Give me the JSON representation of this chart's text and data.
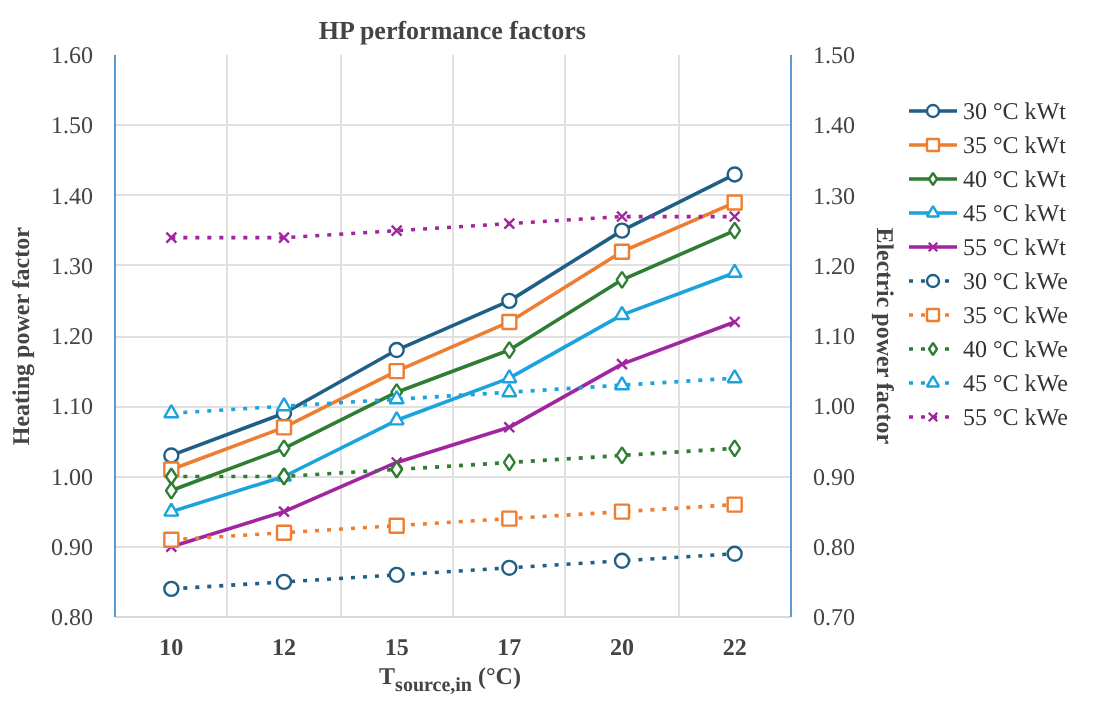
{
  "chart_data": {
    "type": "line",
    "title": "HP performance factors",
    "xlabel": "T$_{source,in}$ (°C)",
    "ylabel": "Heating power factor",
    "y2label": "Electric power factor",
    "categories": [
      "10",
      "12",
      "15",
      "17",
      "20",
      "22"
    ],
    "ylim": [
      0.8,
      1.6
    ],
    "yticks": [
      {
        "value": 0.8,
        "label": "0.80"
      },
      {
        "value": 0.9,
        "label": "0.90"
      },
      {
        "value": 1.0,
        "label": "1.00"
      },
      {
        "value": 1.1,
        "label": "1.10"
      },
      {
        "value": 1.2,
        "label": "1.20"
      },
      {
        "value": 1.3,
        "label": "1.30"
      },
      {
        "value": 1.4,
        "label": "1.40"
      },
      {
        "value": 1.5,
        "label": "1.50"
      },
      {
        "value": 1.6,
        "label": "1.60"
      }
    ],
    "y2lim": [
      0.7,
      1.5
    ],
    "y2ticks": [
      {
        "value": 0.7,
        "label": "0.70"
      },
      {
        "value": 0.8,
        "label": "0.80"
      },
      {
        "value": 0.9,
        "label": "0.90"
      },
      {
        "value": 1.0,
        "label": "1.00"
      },
      {
        "value": 1.1,
        "label": "1.10"
      },
      {
        "value": 1.2,
        "label": "1.20"
      },
      {
        "value": 1.3,
        "label": "1.30"
      },
      {
        "value": 1.4,
        "label": "1.40"
      },
      {
        "value": 1.5,
        "label": "1.50"
      }
    ],
    "grid": true,
    "legend": "right",
    "series": [
      {
        "name": "30 °C kWt",
        "color": "#1f5f86",
        "marker": "circle",
        "line_style": "solid",
        "values": [
          1.03,
          1.09,
          1.18,
          1.25,
          1.35,
          1.43
        ]
      },
      {
        "name": "35 °C kWt",
        "color": "#ed7d31",
        "marker": "square",
        "line_style": "solid",
        "values": [
          1.01,
          1.07,
          1.15,
          1.22,
          1.32,
          1.39
        ]
      },
      {
        "name": "40 °C kWt",
        "color": "#2e7d32",
        "marker": "diamond",
        "line_style": "solid",
        "values": [
          0.98,
          1.04,
          1.12,
          1.18,
          1.28,
          1.35
        ]
      },
      {
        "name": "45 °C kWt",
        "color": "#1aa3dc",
        "marker": "triangle",
        "line_style": "solid",
        "values": [
          0.95,
          1.0,
          1.08,
          1.14,
          1.23,
          1.29
        ]
      },
      {
        "name": "55 °C kWt",
        "color": "#a0259e",
        "marker": "cross",
        "line_style": "solid",
        "values": [
          0.9,
          0.95,
          1.02,
          1.07,
          1.16,
          1.22
        ]
      },
      {
        "name": "30 °C kWe",
        "color": "#1f5f86",
        "marker": "circle",
        "line_style": "dotted",
        "axis": "y2",
        "values": [
          0.74,
          0.75,
          0.76,
          0.77,
          0.78,
          0.79
        ]
      },
      {
        "name": "35 °C kWe",
        "color": "#ed7d31",
        "marker": "square",
        "line_style": "dotted",
        "axis": "y2",
        "values": [
          0.81,
          0.82,
          0.83,
          0.84,
          0.85,
          0.86
        ]
      },
      {
        "name": "40 °C kWe",
        "color": "#2e7d32",
        "marker": "diamond",
        "line_style": "dotted",
        "axis": "y2",
        "values": [
          0.9,
          0.9,
          0.91,
          0.92,
          0.93,
          0.94
        ]
      },
      {
        "name": "45 °C kWe",
        "color": "#1aa3dc",
        "marker": "triangle",
        "line_style": "dotted",
        "axis": "y2",
        "values": [
          0.99,
          1.0,
          1.01,
          1.02,
          1.03,
          1.04
        ]
      },
      {
        "name": "55 °C kWe",
        "color": "#a0259e",
        "marker": "cross",
        "line_style": "dotted",
        "axis": "y2",
        "values": [
          1.24,
          1.24,
          1.25,
          1.26,
          1.27,
          1.27
        ]
      }
    ]
  }
}
